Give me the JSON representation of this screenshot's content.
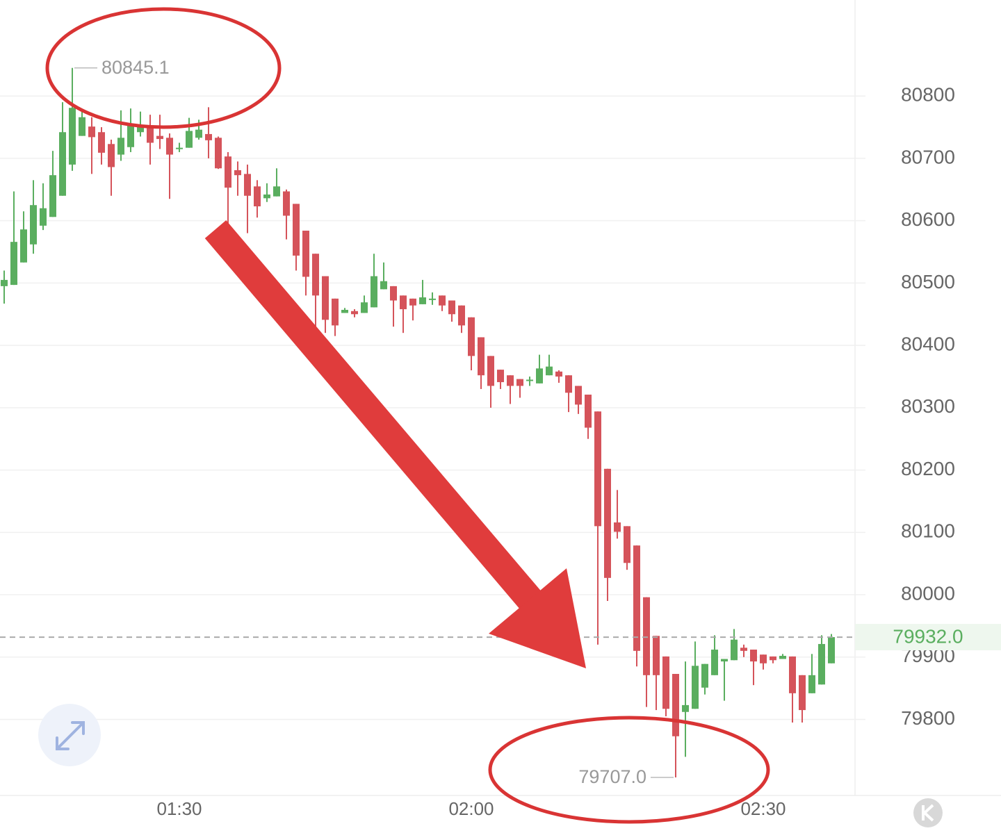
{
  "chart_data": {
    "type": "candlestick",
    "categories": [
      null,
      null,
      null,
      null,
      null,
      null,
      null,
      null,
      null,
      null,
      null,
      null,
      null,
      null,
      null,
      null,
      null,
      null,
      "01:30",
      null,
      null,
      null,
      null,
      null,
      null,
      null,
      null,
      null,
      null,
      null,
      null,
      null,
      null,
      null,
      null,
      null,
      null,
      null,
      null,
      null,
      null,
      null,
      null,
      null,
      null,
      null,
      null,
      null,
      "02:00",
      null,
      null,
      null,
      null,
      null,
      null,
      null,
      null,
      null,
      null,
      null,
      null,
      null,
      null,
      null,
      null,
      null,
      null,
      null,
      null,
      null,
      null,
      null,
      null,
      null,
      null,
      null,
      null,
      null,
      "02:30",
      null,
      null,
      null,
      null,
      null,
      null,
      null
    ],
    "open": [
      80495,
      80497,
      80533,
      80562,
      80592,
      80606,
      80640,
      80690,
      80736,
      80751,
      80742,
      80723,
      80706,
      80718,
      80742,
      80753,
      80736,
      80733,
      80717,
      80717,
      80733,
      80739,
      80733,
      80703,
      80681,
      80675,
      80655,
      80636,
      80639,
      80647,
      80627,
      80584,
      80547,
      80511,
      80475,
      80452,
      80455,
      80452,
      80461,
      80490,
      80495,
      80480,
      80475,
      80466,
      80475,
      80480,
      80472,
      80464,
      80445,
      80413,
      80383,
      80361,
      80352,
      80346,
      80345,
      80339,
      80352,
      80358,
      80352,
      80335,
      80321,
      80294,
      80202,
      80116,
      80110,
      80079,
      79996,
      79934,
      79901,
      79873,
      79812,
      79817,
      79851,
      79871,
      79893,
      79895,
      79915,
      79912,
      79904,
      79901,
      79897,
      79901,
      79871,
      79842,
      79856,
      79890
    ],
    "high": [
      80520,
      80647,
      80615,
      80665,
      80660,
      80712,
      80790,
      80845.1,
      80776,
      80766,
      80750,
      80730,
      80777,
      80780,
      80775,
      80770,
      80770,
      80740,
      80725,
      80765,
      80762,
      80782,
      80735,
      80710,
      80695,
      80690,
      80665,
      80660,
      80684,
      80650,
      80627,
      80584,
      80547,
      80511,
      80475,
      80460,
      80458,
      80480,
      80547,
      80533,
      80495,
      80480,
      80475,
      80505,
      80485,
      80480,
      80472,
      80464,
      80445,
      80413,
      80383,
      80361,
      80352,
      80346,
      80350,
      80385,
      80385,
      80360,
      80352,
      80335,
      80321,
      80294,
      80202,
      80168,
      80110,
      80079,
      79996,
      79934,
      79901,
      79873,
      79893,
      79925,
      79889,
      79935,
      79897,
      79945,
      79920,
      79912,
      79904,
      79901,
      79905,
      79901,
      79871,
      79905,
      79935,
      79937
    ],
    "low": [
      80467,
      80497,
      80533,
      80547,
      80585,
      80606,
      80640,
      80680,
      80736,
      80675,
      80690,
      80640,
      80696,
      80710,
      80735,
      80690,
      80715,
      80635,
      80710,
      80717,
      80730,
      80700,
      80683,
      80575,
      80640,
      80580,
      80605,
      80630,
      80639,
      80570,
      80520,
      80480,
      80415,
      80420,
      80415,
      80452,
      80445,
      80452,
      80461,
      80490,
      80430,
      80420,
      80440,
      80466,
      80465,
      80455,
      80438,
      80420,
      80360,
      80330,
      80300,
      80330,
      80306,
      80316,
      80335,
      80339,
      80352,
      80340,
      80293,
      80290,
      80250,
      79920,
      79990,
      80090,
      80040,
      79885,
      79820,
      79815,
      79805,
      79707,
      79740,
      79817,
      79840,
      79871,
      79830,
      79895,
      79900,
      79855,
      79880,
      79890,
      79897,
      79795,
      79795,
      79842,
      79856,
      79890
    ],
    "close": [
      80505,
      80566,
      80586,
      80625,
      80620,
      80673,
      80742,
      80781,
      80766,
      80734,
      80709,
      80686,
      80733,
      80755,
      80753,
      80725,
      80731,
      80706,
      80717,
      80744,
      80746,
      80729,
      80684,
      80653,
      80673,
      80640,
      80623,
      80642,
      80655,
      80608,
      80544,
      80510,
      80480,
      80441,
      80432,
      80457,
      80450,
      80469,
      80511,
      80503,
      80472,
      80458,
      80464,
      80477,
      80475,
      80464,
      80450,
      80432,
      80383,
      80352,
      80335,
      80341,
      80335,
      80335,
      80345,
      80363,
      80366,
      80350,
      80324,
      80305,
      80268,
      80110,
      80027,
      80101,
      80051,
      79910,
      79871,
      79871,
      79817,
      79773,
      79823,
      79886,
      79889,
      79912,
      79897,
      79928,
      79910,
      79893,
      79890,
      79895,
      79902,
      79842,
      79815,
      79871,
      79921,
      79932
    ],
    "up_color": "#5aae5f",
    "down_color": "#d5535a",
    "ylim": [
      79678,
      80954
    ],
    "yticks": [
      79800,
      79900,
      80000,
      80100,
      80200,
      80300,
      80400,
      80500,
      80600,
      80700,
      80800
    ],
    "grid": true,
    "last_price": {
      "value": 79932,
      "label": "79932.0"
    },
    "annotations": [
      {
        "index": 7,
        "value": 80845.1,
        "label": "80845.1",
        "side": "right"
      },
      {
        "index": 69,
        "value": 79707,
        "label": "79707.0",
        "side": "left"
      }
    ]
  }
}
